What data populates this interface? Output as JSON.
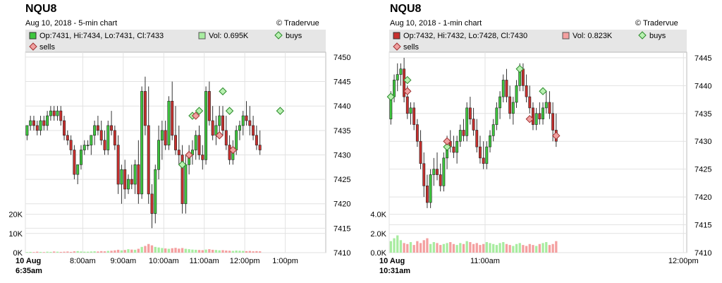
{
  "chart_data": [
    {
      "type": "candlestick",
      "symbol": "NQU8",
      "subtitle": "Aug 10, 2018 - 5-min chart",
      "brand": "© Tradervue",
      "legend": {
        "ohlc": "Op:7431, Hi:7434, Lo:7431, Cl:7433",
        "vol": "Vol: 0.695K",
        "buys": "buys",
        "sells": "sells"
      },
      "colors": {
        "up": "#3ec63e",
        "down": "#c8302e",
        "vol_up": "#a8eca0",
        "vol_down": "#f4a0a0",
        "buy": "#b8f0b0",
        "sell": "#f0a0a0",
        "legend_swatch": "#3ec63e",
        "vol_swatch": "#a8eca0"
      },
      "ylim": [
        7410,
        7451
      ],
      "yticks": [
        7410,
        7415,
        7420,
        7425,
        7430,
        7435,
        7440,
        7445,
        7450
      ],
      "vol_ylim": [
        0,
        25000
      ],
      "vol_ticks": [
        {
          "v": 0,
          "label": "0K"
        },
        {
          "v": 10000,
          "label": "10K"
        },
        {
          "v": 20000,
          "label": "20K"
        }
      ],
      "xlim": [
        0,
        89
      ],
      "xticks": [
        {
          "i": 0,
          "label": "10 Aug",
          "label2": "6:35am"
        },
        {
          "i": 17,
          "label": "8:00am"
        },
        {
          "i": 29,
          "label": "9:00am"
        },
        {
          "i": 41,
          "label": "10:00am"
        },
        {
          "i": 53,
          "label": "11:00am"
        },
        {
          "i": 65,
          "label": "12:00pm"
        },
        {
          "i": 77,
          "label": "1:00pm"
        }
      ],
      "candles": [
        [
          7434,
          7436,
          7433,
          7436
        ],
        [
          7436,
          7438,
          7435,
          7437
        ],
        [
          7437,
          7438,
          7435,
          7436
        ],
        [
          7436,
          7437,
          7434,
          7435
        ],
        [
          7435,
          7438,
          7434,
          7437
        ],
        [
          7437,
          7438,
          7435,
          7436
        ],
        [
          7436,
          7439,
          7435,
          7438
        ],
        [
          7438,
          7440,
          7437,
          7439
        ],
        [
          7439,
          7440,
          7437,
          7438
        ],
        [
          7438,
          7440,
          7437,
          7439
        ],
        [
          7439,
          7440,
          7436,
          7437
        ],
        [
          7437,
          7438,
          7433,
          7434
        ],
        [
          7434,
          7435,
          7432,
          7433
        ],
        [
          7433,
          7434,
          7430,
          7431
        ],
        [
          7431,
          7432,
          7425,
          7426
        ],
        [
          7426,
          7428,
          7424,
          7428
        ],
        [
          7428,
          7432,
          7427,
          7431
        ],
        [
          7431,
          7433,
          7430,
          7432
        ],
        [
          7432,
          7433,
          7431,
          7432
        ],
        [
          7432,
          7434,
          7430,
          7434
        ],
        [
          7434,
          7437,
          7432,
          7436
        ],
        [
          7436,
          7438,
          7434,
          7435
        ],
        [
          7435,
          7437,
          7432,
          7433
        ],
        [
          7433,
          7435,
          7430,
          7431
        ],
        [
          7431,
          7437,
          7430,
          7436
        ],
        [
          7436,
          7439,
          7434,
          7435
        ],
        [
          7435,
          7436,
          7431,
          7432
        ],
        [
          7432,
          7434,
          7422,
          7424
        ],
        [
          7424,
          7428,
          7420,
          7427
        ],
        [
          7427,
          7429,
          7421,
          7423
        ],
        [
          7423,
          7426,
          7422,
          7425
        ],
        [
          7425,
          7428,
          7423,
          7424
        ],
        [
          7424,
          7429,
          7422,
          7428
        ],
        [
          7428,
          7433,
          7420,
          7422
        ],
        [
          7422,
          7444,
          7421,
          7443
        ],
        [
          7443,
          7446,
          7434,
          7436
        ],
        [
          7436,
          7444,
          7420,
          7422
        ],
        [
          7422,
          7424,
          7415,
          7418
        ],
        [
          7418,
          7428,
          7416,
          7427
        ],
        [
          7427,
          7436,
          7425,
          7433
        ],
        [
          7433,
          7437,
          7429,
          7435
        ],
        [
          7435,
          7437,
          7431,
          7432
        ],
        [
          7432,
          7442,
          7431,
          7441
        ],
        [
          7441,
          7445,
          7433,
          7434
        ],
        [
          7434,
          7440,
          7430,
          7431
        ],
        [
          7431,
          7436,
          7428,
          7430
        ],
        [
          7430,
          7432,
          7418,
          7420
        ],
        [
          7420,
          7430,
          7418,
          7428
        ],
        [
          7428,
          7432,
          7426,
          7430
        ],
        [
          7430,
          7433,
          7428,
          7431
        ],
        [
          7431,
          7435,
          7429,
          7434
        ],
        [
          7434,
          7436,
          7429,
          7430
        ],
        [
          7430,
          7432,
          7427,
          7429
        ],
        [
          7429,
          7444,
          7428,
          7443
        ],
        [
          7443,
          7445,
          7436,
          7437
        ],
        [
          7437,
          7440,
          7433,
          7434
        ],
        [
          7434,
          7438,
          7432,
          7436
        ],
        [
          7436,
          7440,
          7434,
          7438
        ],
        [
          7438,
          7440,
          7434,
          7435
        ],
        [
          7435,
          7438,
          7431,
          7432
        ],
        [
          7432,
          7434,
          7428,
          7429
        ],
        [
          7429,
          7433,
          7428,
          7431
        ],
        [
          7431,
          7436,
          7430,
          7435
        ],
        [
          7435,
          7437,
          7433,
          7436
        ],
        [
          7436,
          7439,
          7434,
          7438
        ],
        [
          7438,
          7441,
          7436,
          7437
        ],
        [
          7437,
          7440,
          7434,
          7436
        ],
        [
          7436,
          7438,
          7433,
          7434
        ],
        [
          7434,
          7436,
          7431,
          7432
        ],
        [
          7432,
          7435,
          7430,
          7431
        ]
      ],
      "volumes": [
        300,
        400,
        300,
        500,
        400,
        300,
        500,
        400,
        600,
        500,
        400,
        500,
        600,
        400,
        700,
        800,
        600,
        500,
        500,
        600,
        700,
        600,
        800,
        700,
        900,
        1000,
        1200,
        1500,
        1200,
        1400,
        1800,
        1600,
        1500,
        2000,
        3000,
        3500,
        4500,
        3800,
        3000,
        2700,
        2400,
        2200,
        2000,
        2300,
        2500,
        2100,
        2400,
        2000,
        1800,
        1600,
        1500,
        1400,
        1300,
        1600,
        1800,
        1500,
        1400,
        1200,
        1300,
        1100,
        1000,
        900,
        1100,
        1000,
        900,
        800,
        900,
        700,
        800,
        700
      ],
      "buys": [
        {
          "i": 49,
          "p": 7438
        },
        {
          "i": 51,
          "p": 7439
        },
        {
          "i": 46,
          "p": 7428
        },
        {
          "i": 58,
          "p": 7443
        },
        {
          "i": 60,
          "p": 7439
        },
        {
          "i": 75,
          "p": 7439
        }
      ],
      "sells": [
        {
          "i": 48,
          "p": 7430
        },
        {
          "i": 50,
          "p": 7438
        },
        {
          "i": 57,
          "p": 7434
        },
        {
          "i": 61,
          "p": 7431
        }
      ]
    },
    {
      "type": "candlestick",
      "symbol": "NQU8",
      "subtitle": "Aug 10, 2018 - 1-min chart",
      "brand": "© Tradervue",
      "legend": {
        "ohlc": "Op:7432, Hi:7432, Lo:7428, Cl:7430",
        "vol": "Vol: 0.823K",
        "buys": "buys",
        "sells": "sells"
      },
      "colors": {
        "up": "#3ec63e",
        "down": "#c8302e",
        "vol_up": "#a8eca0",
        "vol_down": "#f4a0a0",
        "buy": "#b8f0b0",
        "sell": "#f0a0a0",
        "legend_swatch": "#c8302e",
        "vol_swatch": "#f4a0a0"
      },
      "ylim": [
        7410,
        7446
      ],
      "yticks": [
        7410,
        7415,
        7420,
        7425,
        7430,
        7435,
        7440,
        7445
      ],
      "vol_ylim": [
        0,
        5000
      ],
      "vol_ticks": [
        {
          "v": 0,
          "label": "0.0K"
        },
        {
          "v": 2000,
          "label": "2.0K"
        },
        {
          "v": 4000,
          "label": "4.0K"
        }
      ],
      "xlim": [
        0,
        90
      ],
      "xticks": [
        {
          "i": 0,
          "label": "10 Aug",
          "label2": "10:31am"
        },
        {
          "i": 29,
          "label": "11:00am"
        },
        {
          "i": 89,
          "label": "12:00pm"
        }
      ],
      "candles": [
        [
          7434,
          7439,
          7433,
          7438
        ],
        [
          7438,
          7442,
          7437,
          7441
        ],
        [
          7441,
          7444,
          7439,
          7442
        ],
        [
          7442,
          7444,
          7440,
          7443
        ],
        [
          7443,
          7445,
          7437,
          7438
        ],
        [
          7438,
          7440,
          7434,
          7435
        ],
        [
          7435,
          7437,
          7433,
          7436
        ],
        [
          7436,
          7437,
          7432,
          7433
        ],
        [
          7433,
          7434,
          7429,
          7430
        ],
        [
          7430,
          7432,
          7425,
          7426
        ],
        [
          7426,
          7428,
          7420,
          7422
        ],
        [
          7422,
          7424,
          7418,
          7419
        ],
        [
          7419,
          7425,
          7418,
          7424
        ],
        [
          7424,
          7427,
          7422,
          7425
        ],
        [
          7425,
          7428,
          7423,
          7424
        ],
        [
          7424,
          7426,
          7421,
          7422
        ],
        [
          7422,
          7428,
          7421,
          7427
        ],
        [
          7427,
          7431,
          7425,
          7430
        ],
        [
          7430,
          7432,
          7428,
          7429
        ],
        [
          7429,
          7431,
          7427,
          7428
        ],
        [
          7428,
          7431,
          7426,
          7430
        ],
        [
          7430,
          7433,
          7429,
          7432
        ],
        [
          7432,
          7434,
          7430,
          7431
        ],
        [
          7431,
          7437,
          7430,
          7436
        ],
        [
          7436,
          7438,
          7433,
          7434
        ],
        [
          7434,
          7436,
          7431,
          7432
        ],
        [
          7432,
          7434,
          7428,
          7429
        ],
        [
          7429,
          7431,
          7426,
          7427
        ],
        [
          7427,
          7430,
          7425,
          7426
        ],
        [
          7426,
          7430,
          7425,
          7429
        ],
        [
          7429,
          7432,
          7428,
          7431
        ],
        [
          7431,
          7434,
          7430,
          7433
        ],
        [
          7433,
          7437,
          7432,
          7436
        ],
        [
          7436,
          7439,
          7434,
          7438
        ],
        [
          7438,
          7442,
          7437,
          7441
        ],
        [
          7441,
          7443,
          7437,
          7438
        ],
        [
          7438,
          7440,
          7434,
          7435
        ],
        [
          7435,
          7438,
          7433,
          7437
        ],
        [
          7437,
          7441,
          7436,
          7440
        ],
        [
          7440,
          7444,
          7439,
          7443
        ],
        [
          7443,
          7444,
          7439,
          7440
        ],
        [
          7440,
          7442,
          7437,
          7438
        ],
        [
          7438,
          7440,
          7435,
          7436
        ],
        [
          7436,
          7437,
          7432,
          7433
        ],
        [
          7433,
          7436,
          7432,
          7435
        ],
        [
          7435,
          7437,
          7433,
          7434
        ],
        [
          7434,
          7437,
          7433,
          7436
        ],
        [
          7436,
          7439,
          7435,
          7437
        ],
        [
          7437,
          7439,
          7434,
          7435
        ],
        [
          7435,
          7437,
          7430,
          7432
        ],
        [
          7432,
          7435,
          7429,
          7430
        ]
      ],
      "volumes": [
        1200,
        1500,
        1800,
        1300,
        1000,
        900,
        1100,
        800,
        1200,
        1000,
        1300,
        1500,
        900,
        1100,
        1000,
        800,
        900,
        1000,
        1100,
        900,
        800,
        1000,
        900,
        1200,
        1100,
        900,
        1000,
        800,
        900,
        1100,
        1000,
        900,
        800,
        1000,
        1100,
        900,
        800,
        700,
        900,
        1000,
        800,
        700,
        900,
        800,
        700,
        900,
        1000,
        1100,
        800,
        900,
        1200
      ],
      "buys": [
        {
          "i": 0,
          "p": 7438
        },
        {
          "i": 5,
          "p": 7441
        },
        {
          "i": 17,
          "p": 7429
        },
        {
          "i": 39,
          "p": 7443
        },
        {
          "i": 46,
          "p": 7439
        }
      ],
      "sells": [
        {
          "i": 5,
          "p": 7439
        },
        {
          "i": 17,
          "p": 7430
        },
        {
          "i": 42,
          "p": 7434
        },
        {
          "i": 50,
          "p": 7431
        }
      ]
    }
  ]
}
